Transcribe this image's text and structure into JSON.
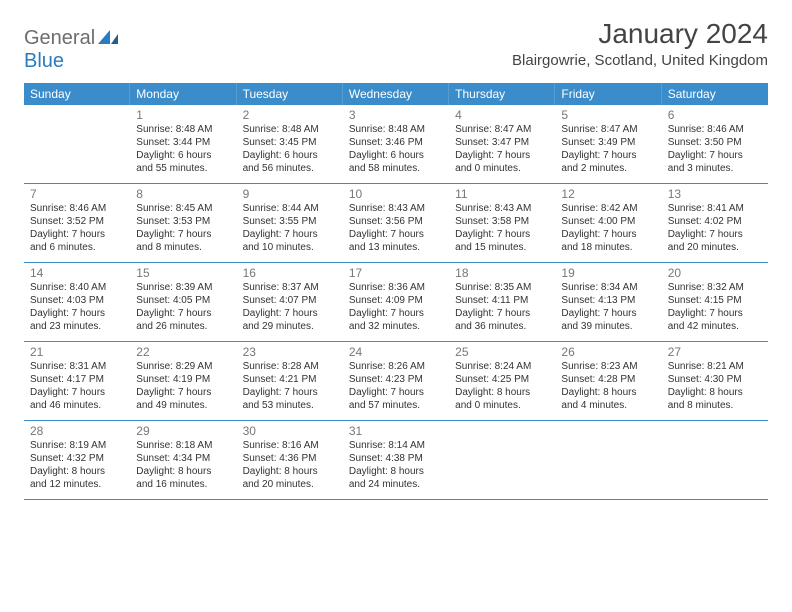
{
  "logo": {
    "text1": "General",
    "text2": "Blue"
  },
  "title": "January 2024",
  "location": "Blairgowrie, Scotland, United Kingdom",
  "colors": {
    "header_bg": "#3b8ccb",
    "header_text": "#ffffff",
    "rule": "#3b8ccb",
    "logo_gray": "#6d6d6d",
    "logo_blue": "#2b7bbf",
    "daynum": "#777777",
    "body_text": "#333333"
  },
  "day_headers": [
    "Sunday",
    "Monday",
    "Tuesday",
    "Wednesday",
    "Thursday",
    "Friday",
    "Saturday"
  ],
  "weeks": [
    [
      {
        "num": "",
        "sunrise": "",
        "sunset": "",
        "daylight": ""
      },
      {
        "num": "1",
        "sunrise": "Sunrise: 8:48 AM",
        "sunset": "Sunset: 3:44 PM",
        "daylight": "Daylight: 6 hours and 55 minutes."
      },
      {
        "num": "2",
        "sunrise": "Sunrise: 8:48 AM",
        "sunset": "Sunset: 3:45 PM",
        "daylight": "Daylight: 6 hours and 56 minutes."
      },
      {
        "num": "3",
        "sunrise": "Sunrise: 8:48 AM",
        "sunset": "Sunset: 3:46 PM",
        "daylight": "Daylight: 6 hours and 58 minutes."
      },
      {
        "num": "4",
        "sunrise": "Sunrise: 8:47 AM",
        "sunset": "Sunset: 3:47 PM",
        "daylight": "Daylight: 7 hours and 0 minutes."
      },
      {
        "num": "5",
        "sunrise": "Sunrise: 8:47 AM",
        "sunset": "Sunset: 3:49 PM",
        "daylight": "Daylight: 7 hours and 2 minutes."
      },
      {
        "num": "6",
        "sunrise": "Sunrise: 8:46 AM",
        "sunset": "Sunset: 3:50 PM",
        "daylight": "Daylight: 7 hours and 3 minutes."
      }
    ],
    [
      {
        "num": "7",
        "sunrise": "Sunrise: 8:46 AM",
        "sunset": "Sunset: 3:52 PM",
        "daylight": "Daylight: 7 hours and 6 minutes."
      },
      {
        "num": "8",
        "sunrise": "Sunrise: 8:45 AM",
        "sunset": "Sunset: 3:53 PM",
        "daylight": "Daylight: 7 hours and 8 minutes."
      },
      {
        "num": "9",
        "sunrise": "Sunrise: 8:44 AM",
        "sunset": "Sunset: 3:55 PM",
        "daylight": "Daylight: 7 hours and 10 minutes."
      },
      {
        "num": "10",
        "sunrise": "Sunrise: 8:43 AM",
        "sunset": "Sunset: 3:56 PM",
        "daylight": "Daylight: 7 hours and 13 minutes."
      },
      {
        "num": "11",
        "sunrise": "Sunrise: 8:43 AM",
        "sunset": "Sunset: 3:58 PM",
        "daylight": "Daylight: 7 hours and 15 minutes."
      },
      {
        "num": "12",
        "sunrise": "Sunrise: 8:42 AM",
        "sunset": "Sunset: 4:00 PM",
        "daylight": "Daylight: 7 hours and 18 minutes."
      },
      {
        "num": "13",
        "sunrise": "Sunrise: 8:41 AM",
        "sunset": "Sunset: 4:02 PM",
        "daylight": "Daylight: 7 hours and 20 minutes."
      }
    ],
    [
      {
        "num": "14",
        "sunrise": "Sunrise: 8:40 AM",
        "sunset": "Sunset: 4:03 PM",
        "daylight": "Daylight: 7 hours and 23 minutes."
      },
      {
        "num": "15",
        "sunrise": "Sunrise: 8:39 AM",
        "sunset": "Sunset: 4:05 PM",
        "daylight": "Daylight: 7 hours and 26 minutes."
      },
      {
        "num": "16",
        "sunrise": "Sunrise: 8:37 AM",
        "sunset": "Sunset: 4:07 PM",
        "daylight": "Daylight: 7 hours and 29 minutes."
      },
      {
        "num": "17",
        "sunrise": "Sunrise: 8:36 AM",
        "sunset": "Sunset: 4:09 PM",
        "daylight": "Daylight: 7 hours and 32 minutes."
      },
      {
        "num": "18",
        "sunrise": "Sunrise: 8:35 AM",
        "sunset": "Sunset: 4:11 PM",
        "daylight": "Daylight: 7 hours and 36 minutes."
      },
      {
        "num": "19",
        "sunrise": "Sunrise: 8:34 AM",
        "sunset": "Sunset: 4:13 PM",
        "daylight": "Daylight: 7 hours and 39 minutes."
      },
      {
        "num": "20",
        "sunrise": "Sunrise: 8:32 AM",
        "sunset": "Sunset: 4:15 PM",
        "daylight": "Daylight: 7 hours and 42 minutes."
      }
    ],
    [
      {
        "num": "21",
        "sunrise": "Sunrise: 8:31 AM",
        "sunset": "Sunset: 4:17 PM",
        "daylight": "Daylight: 7 hours and 46 minutes."
      },
      {
        "num": "22",
        "sunrise": "Sunrise: 8:29 AM",
        "sunset": "Sunset: 4:19 PM",
        "daylight": "Daylight: 7 hours and 49 minutes."
      },
      {
        "num": "23",
        "sunrise": "Sunrise: 8:28 AM",
        "sunset": "Sunset: 4:21 PM",
        "daylight": "Daylight: 7 hours and 53 minutes."
      },
      {
        "num": "24",
        "sunrise": "Sunrise: 8:26 AM",
        "sunset": "Sunset: 4:23 PM",
        "daylight": "Daylight: 7 hours and 57 minutes."
      },
      {
        "num": "25",
        "sunrise": "Sunrise: 8:24 AM",
        "sunset": "Sunset: 4:25 PM",
        "daylight": "Daylight: 8 hours and 0 minutes."
      },
      {
        "num": "26",
        "sunrise": "Sunrise: 8:23 AM",
        "sunset": "Sunset: 4:28 PM",
        "daylight": "Daylight: 8 hours and 4 minutes."
      },
      {
        "num": "27",
        "sunrise": "Sunrise: 8:21 AM",
        "sunset": "Sunset: 4:30 PM",
        "daylight": "Daylight: 8 hours and 8 minutes."
      }
    ],
    [
      {
        "num": "28",
        "sunrise": "Sunrise: 8:19 AM",
        "sunset": "Sunset: 4:32 PM",
        "daylight": "Daylight: 8 hours and 12 minutes."
      },
      {
        "num": "29",
        "sunrise": "Sunrise: 8:18 AM",
        "sunset": "Sunset: 4:34 PM",
        "daylight": "Daylight: 8 hours and 16 minutes."
      },
      {
        "num": "30",
        "sunrise": "Sunrise: 8:16 AM",
        "sunset": "Sunset: 4:36 PM",
        "daylight": "Daylight: 8 hours and 20 minutes."
      },
      {
        "num": "31",
        "sunrise": "Sunrise: 8:14 AM",
        "sunset": "Sunset: 4:38 PM",
        "daylight": "Daylight: 8 hours and 24 minutes."
      },
      {
        "num": "",
        "sunrise": "",
        "sunset": "",
        "daylight": ""
      },
      {
        "num": "",
        "sunrise": "",
        "sunset": "",
        "daylight": ""
      },
      {
        "num": "",
        "sunrise": "",
        "sunset": "",
        "daylight": ""
      }
    ]
  ]
}
